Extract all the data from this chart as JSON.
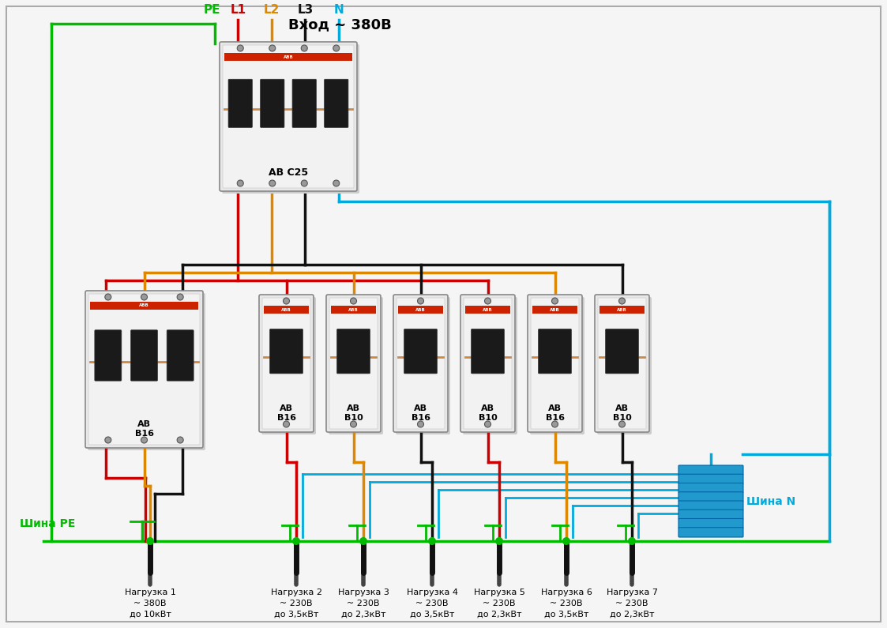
{
  "title": "Вход ~ 380В",
  "bg_color": "#f5f5f5",
  "border_color": "#aaaaaa",
  "wire_colors": {
    "PE": "#00bb00",
    "L1": "#cc0000",
    "L2": "#dd8800",
    "L3": "#111111",
    "N": "#00aadd"
  },
  "label_colors": {
    "PE": "#00bb00",
    "L1": "#cc0000",
    "L2": "#dd8800",
    "L3": "#111111",
    "N": "#00aadd"
  },
  "shina_PE_label": "Шина РЕ",
  "shina_N_label": "Шина N",
  "shina_PE_color": "#00bb00",
  "shina_N_color": "#00aadd",
  "load_labels": [
    "Нагрузка 1\n~ 380В\nдо 10кВт",
    "Нагрузка 2\n~ 230В\nдо 3,5кВт",
    "Нагрузка 3\n~ 230В\nдо 2,3кВт",
    "Нагрузка 4\n~ 230В\nдо 3,5кВт",
    "Нагрузка 5\n~ 230В\nдо 2,3кВт",
    "Нагрузка 6\n~ 230В\nдо 3,5кВт",
    "Нагрузка 7\n~ 230В\nдо 2,3кВт"
  ],
  "sb_labels": [
    "АВ\nВ16",
    "АВ\nВ10",
    "АВ\nВ16",
    "АВ\nВ10",
    "АВ\nВ16",
    "АВ\nВ10"
  ],
  "sb_phases": [
    "L1",
    "L2",
    "L3",
    "L1",
    "L2",
    "L3"
  ]
}
